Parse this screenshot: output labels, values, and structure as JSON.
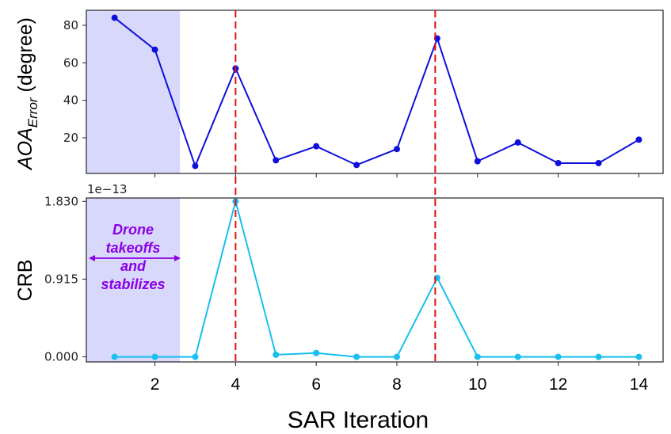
{
  "chart_data": [
    {
      "type": "line",
      "panel": "top",
      "ylabel_main": "AOA",
      "ylabel_sub": "Error",
      "ylabel_rest": " (degree)",
      "x": [
        1,
        2,
        3,
        4,
        5,
        6,
        7,
        8,
        9,
        10,
        11,
        12,
        13,
        14
      ],
      "values": [
        84,
        67,
        5,
        57,
        8,
        15.5,
        5.5,
        14,
        73,
        7.5,
        17.5,
        6.5,
        6.5,
        19
      ],
      "xlim": [
        0.3,
        14.6
      ],
      "ylim": [
        1,
        88
      ],
      "yticks": [
        20,
        40,
        60,
        80
      ],
      "ytick_labels": [
        "20",
        "40",
        "60",
        "80"
      ],
      "color": "#0f0fdc"
    },
    {
      "type": "line",
      "panel": "bottom",
      "ylabel": "CRB",
      "offset_text": "1e−13",
      "x": [
        1,
        2,
        3,
        4,
        5,
        6,
        7,
        8,
        9,
        10,
        11,
        12,
        13,
        14
      ],
      "values": [
        0,
        0,
        0,
        1.83,
        0.025,
        0.045,
        0,
        0,
        0.93,
        0,
        0,
        0,
        0,
        0
      ],
      "xlim": [
        0.3,
        14.6
      ],
      "ylim": [
        -0.06,
        1.87
      ],
      "yticks": [
        0,
        0.915,
        1.83
      ],
      "ytick_labels": [
        "0.000",
        "0.915",
        "1.830"
      ],
      "xticks": [
        2,
        4,
        6,
        8,
        10,
        12,
        14
      ],
      "xtick_labels": [
        "2",
        "4",
        "6",
        "8",
        "10",
        "12",
        "14"
      ],
      "xlabel": "SAR Iteration",
      "color": "#17c0ee"
    }
  ],
  "annotation": {
    "lines": [
      "Drone",
      "takeoffs",
      "and",
      "stabilizes"
    ],
    "shaded_x_range": [
      0.3,
      2.62
    ],
    "shade_color": "#d8d8fb",
    "text_color": "#8a00e6"
  },
  "markers": {
    "vertical_lines_at": [
      4,
      8.95
    ],
    "color": "#e01010"
  }
}
